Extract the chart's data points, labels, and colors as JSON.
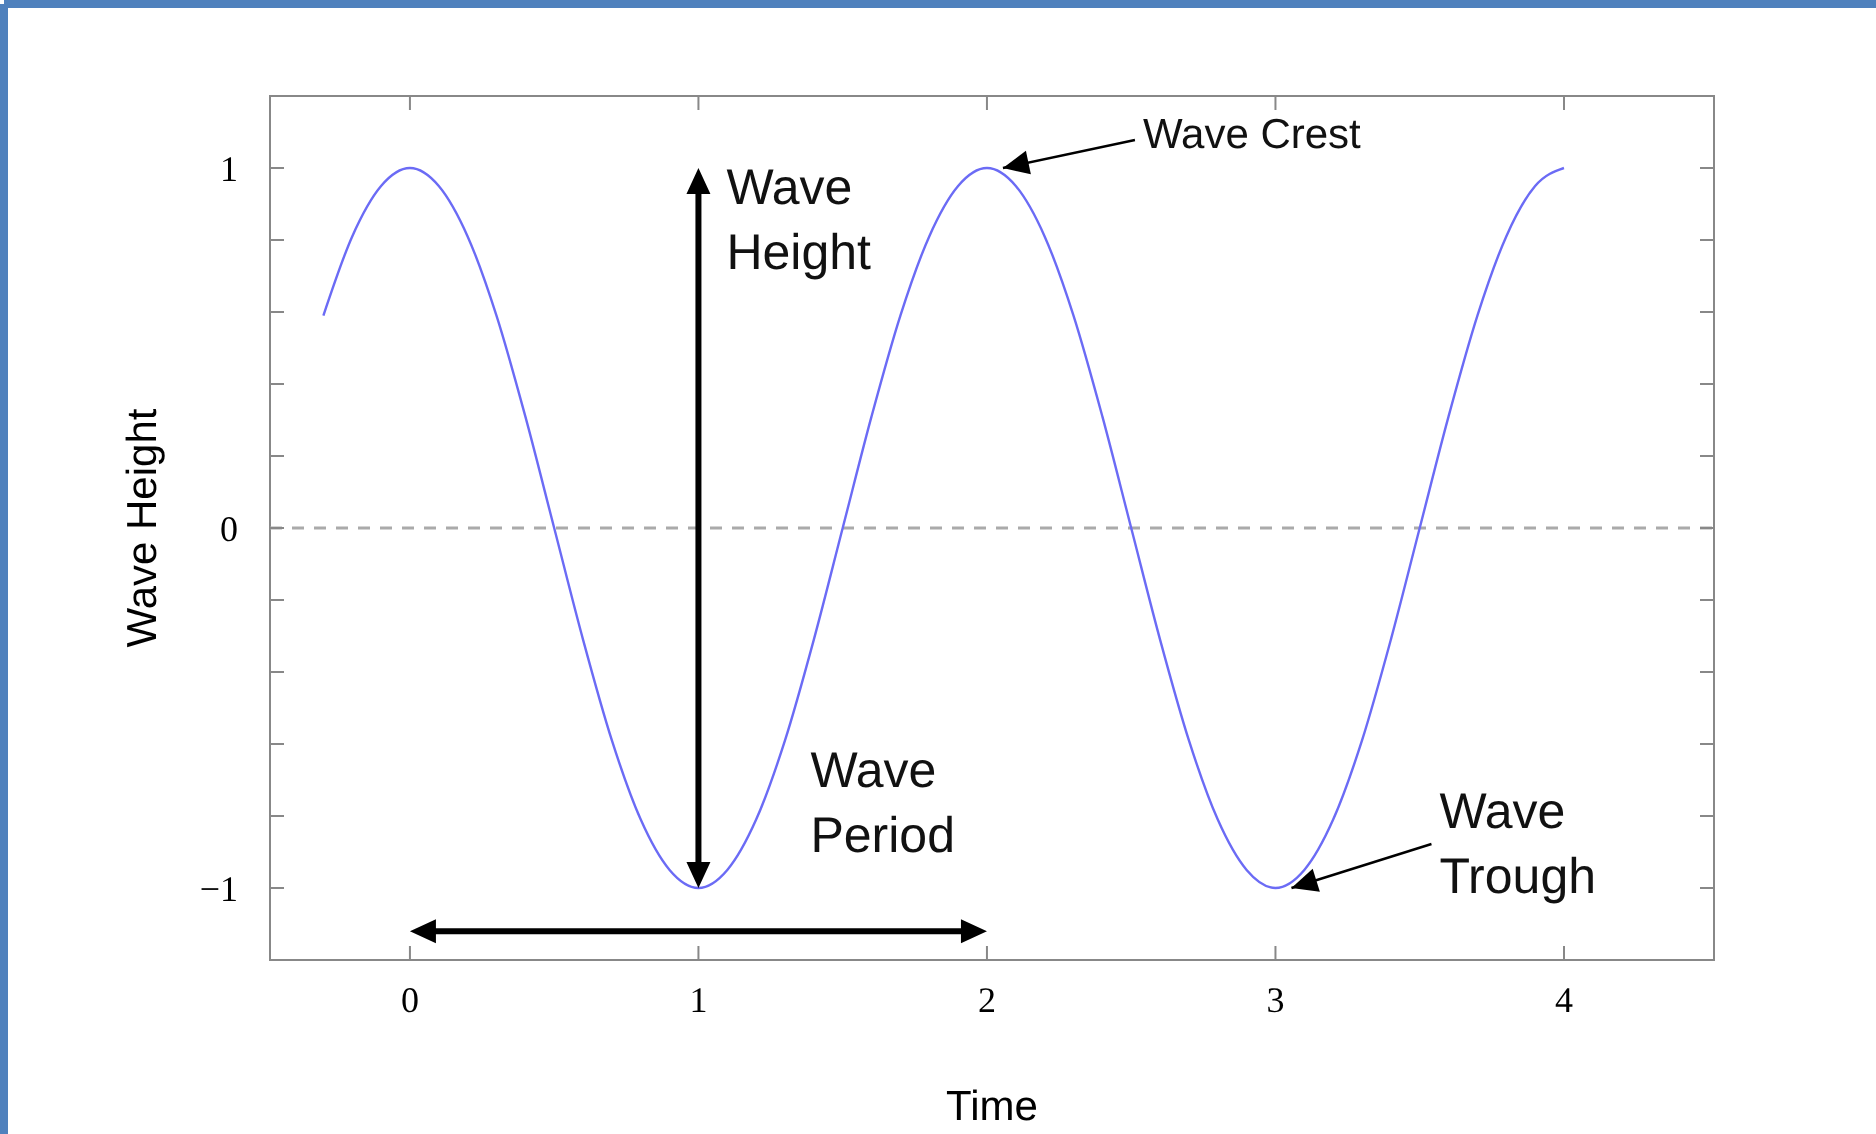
{
  "chart_data": {
    "type": "line",
    "xlabel": "Time",
    "ylabel": "Wave Height",
    "x": [
      -0.3,
      -0.2,
      -0.1,
      0,
      0.1,
      0.2,
      0.3,
      0.4,
      0.5,
      0.6,
      0.7,
      0.8,
      0.9,
      1,
      1.1,
      1.2,
      1.3,
      1.4,
      1.5,
      1.6,
      1.7,
      1.8,
      1.9,
      2,
      2.1,
      2.2,
      2.3,
      2.4,
      2.5,
      2.6,
      2.7,
      2.8,
      2.9,
      3,
      3.1,
      3.2,
      3.3,
      3.4,
      3.5,
      3.6,
      3.7,
      3.8,
      3.9,
      4
    ],
    "series": [
      {
        "color": "#6b6bf5",
        "values": [
          0.59,
          0.81,
          0.95,
          1,
          0.95,
          0.81,
          0.59,
          0.31,
          0,
          -0.31,
          -0.59,
          -0.81,
          -0.95,
          -1,
          -0.95,
          -0.81,
          -0.59,
          -0.31,
          0,
          0.31,
          0.59,
          0.81,
          0.95,
          1,
          0.95,
          0.81,
          0.59,
          0.31,
          0,
          -0.31,
          -0.59,
          -0.81,
          -0.95,
          -1,
          -0.95,
          -0.81,
          -0.59,
          -0.31,
          0,
          0.31,
          0.59,
          0.81,
          0.95,
          1
        ]
      }
    ],
    "xlim": [
      -0.485,
      4.52
    ],
    "xticks": [
      0,
      1,
      2,
      3,
      4
    ],
    "ylim": [
      -1.2,
      1.2
    ],
    "yticks": [
      {
        "value": -1,
        "label": "−1"
      },
      {
        "value": -0.8,
        "label": null
      },
      {
        "value": -0.6,
        "label": null
      },
      {
        "value": -0.4,
        "label": null
      },
      {
        "value": -0.2,
        "label": null
      },
      0,
      {
        "value": 0.2,
        "label": null
      },
      {
        "value": 0.4,
        "label": null
      },
      {
        "value": 0.6,
        "label": null
      },
      {
        "value": 0.8,
        "label": null
      },
      1
    ],
    "ref_lines": [
      {
        "axis": "y",
        "value": 0,
        "color": "#aaaaaa",
        "line_style": "dashed"
      }
    ],
    "annotations": [
      "Wave Height",
      "Wave Period",
      {
        "text": "Wave Crest",
        "x": 2,
        "y": 1
      },
      {
        "text": "Wave Trough",
        "x": 3,
        "y": -1
      }
    ],
    "grid": false,
    "marker": "none",
    "line_style": "solid"
  }
}
